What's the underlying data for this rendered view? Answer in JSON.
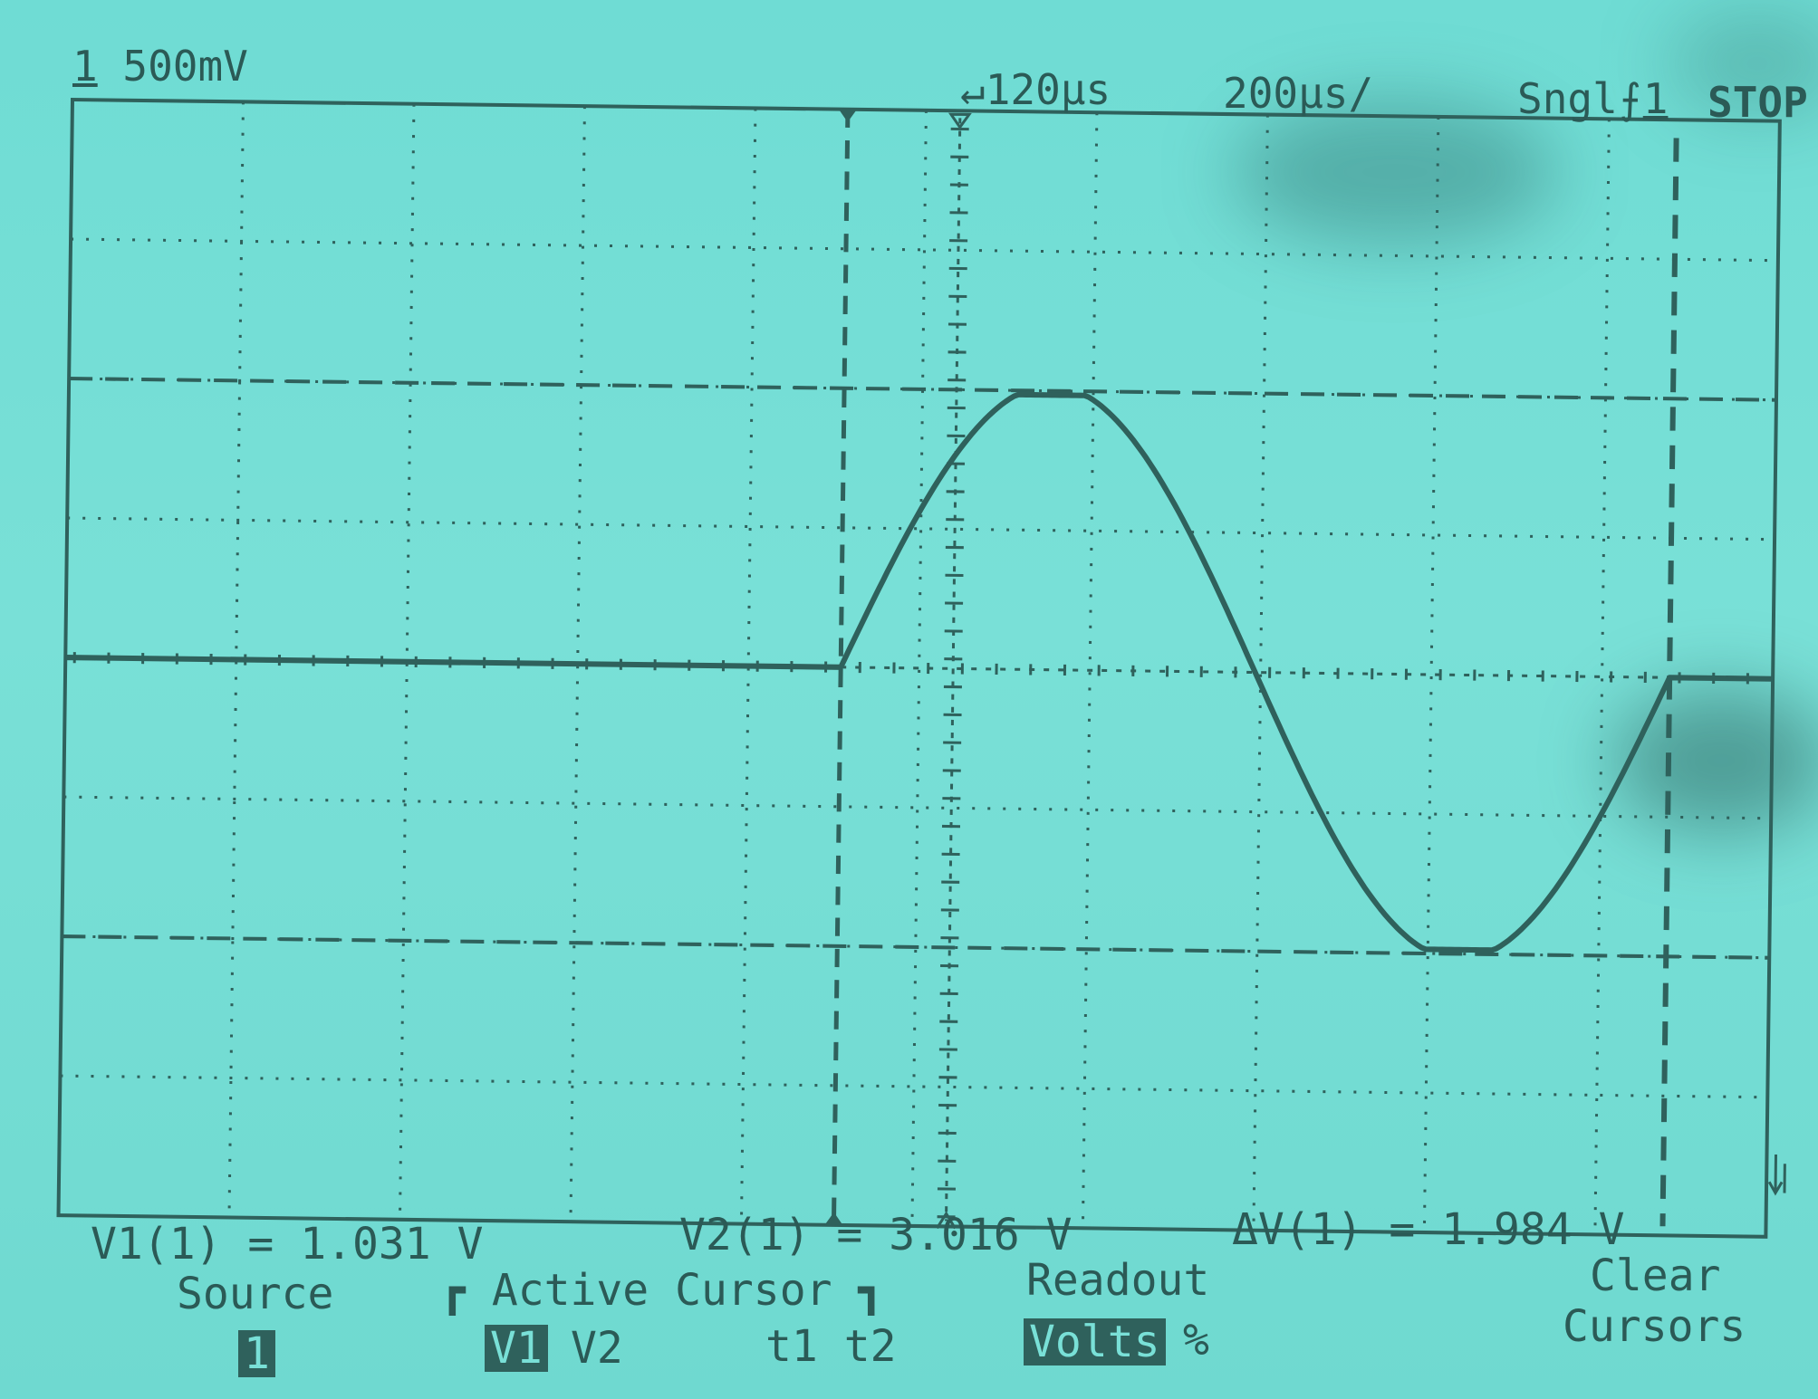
{
  "header": {
    "channel": "1",
    "volts_per_div": "500mV",
    "trigger_delay": "120µs",
    "time_per_div": "200µs/",
    "mode": "Sngl",
    "trigger_channel": "1",
    "run_state": "STOP"
  },
  "measurements": {
    "v1": "V1(1) = 1.031 V",
    "v2": "V2(1) = 3.016 V",
    "delta_v": "ΔV(1) = 1.984 V"
  },
  "softkeys": {
    "source_label": "Source",
    "source_value": "1",
    "active_cursor_label": "Active Cursor",
    "v1_option": "V1",
    "v2_option": "V2",
    "t1t2_option": "t1 t2",
    "readout_label": "Readout",
    "volts_option": "Volts",
    "percent_option": "%",
    "clear_label_line1": "Clear",
    "clear_label_line2": "Cursors"
  },
  "icons": {
    "trigger_marker": "trigger-delay-icon",
    "trigger_slope": "rising-edge-icon",
    "ground_marker": "ground-reference-icon"
  },
  "colors": {
    "background": "#79e0d7",
    "trace": "#2f615c",
    "inverse_text": "#79e0d7"
  }
}
